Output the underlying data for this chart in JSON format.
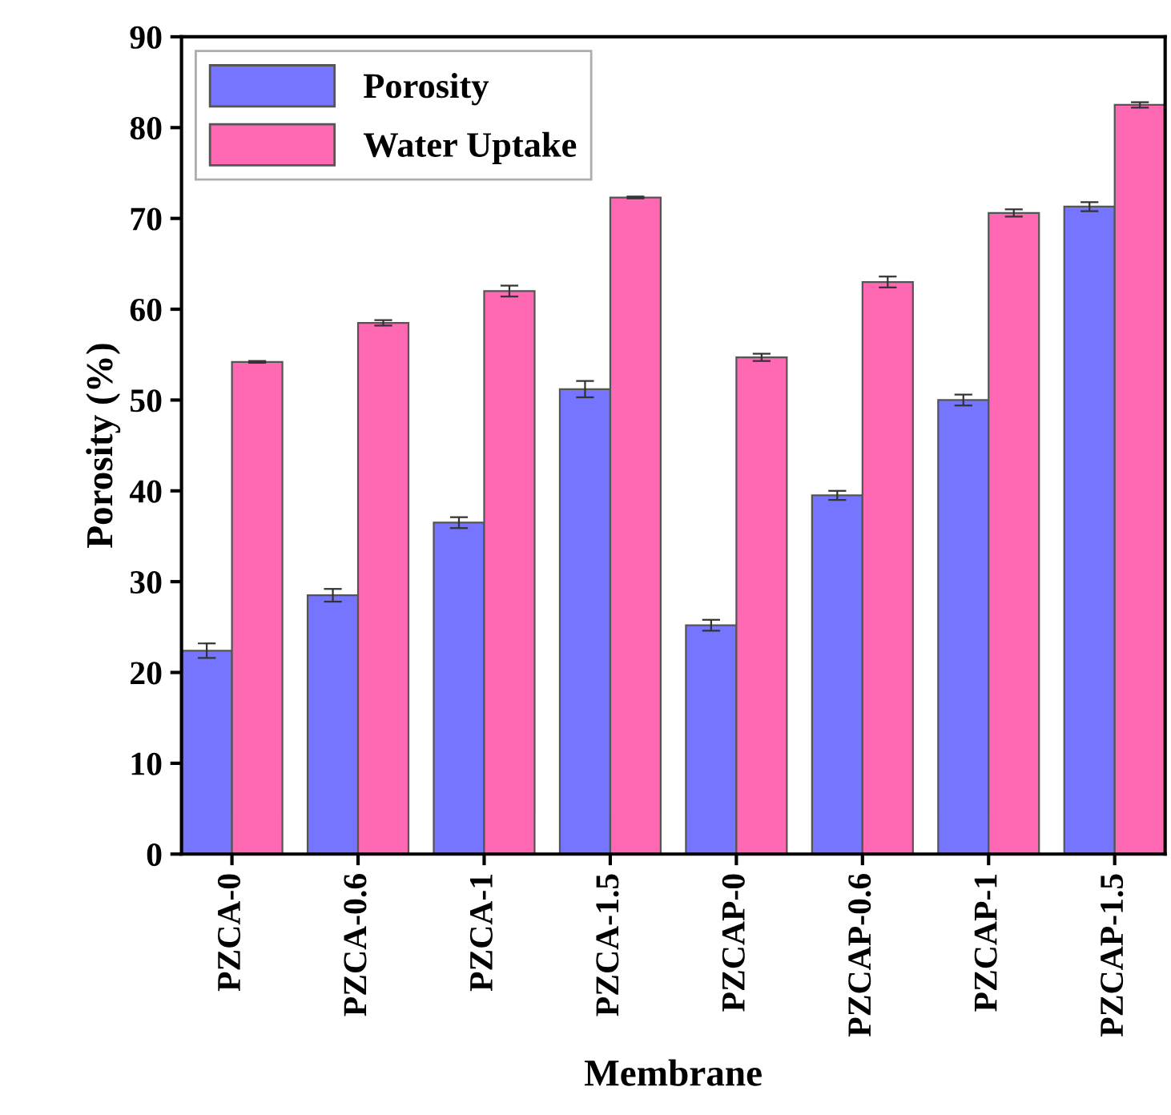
{
  "chart_data": {
    "type": "bar",
    "xlabel": "Membrane",
    "ylabel": "Porosity (%)",
    "categories": [
      "PZCA-0",
      "PZCA-0.6",
      "PZCA-1",
      "PZCA-1.5",
      "PZCAP-0",
      "PZCAP-0.6",
      "PZCAP-1",
      "PZCAP-1.5"
    ],
    "series": [
      {
        "name": "Porosity",
        "color": "#7575ff",
        "values": [
          22.4,
          28.5,
          36.5,
          51.2,
          25.2,
          39.5,
          50.0,
          71.3
        ],
        "errors": [
          0.8,
          0.7,
          0.6,
          0.9,
          0.6,
          0.5,
          0.6,
          0.5
        ]
      },
      {
        "name": "Water Uptake",
        "color": "#ff69b4",
        "values": [
          54.2,
          58.5,
          62.0,
          72.3,
          54.7,
          63.0,
          70.6,
          82.5
        ],
        "errors": [
          0.1,
          0.3,
          0.6,
          0.1,
          0.4,
          0.6,
          0.4,
          0.3
        ]
      }
    ],
    "ylim": [
      0,
      90
    ],
    "yticks": [
      0,
      10,
      20,
      30,
      40,
      50,
      60,
      70,
      80,
      90
    ],
    "grid": false,
    "legend": "top left"
  }
}
